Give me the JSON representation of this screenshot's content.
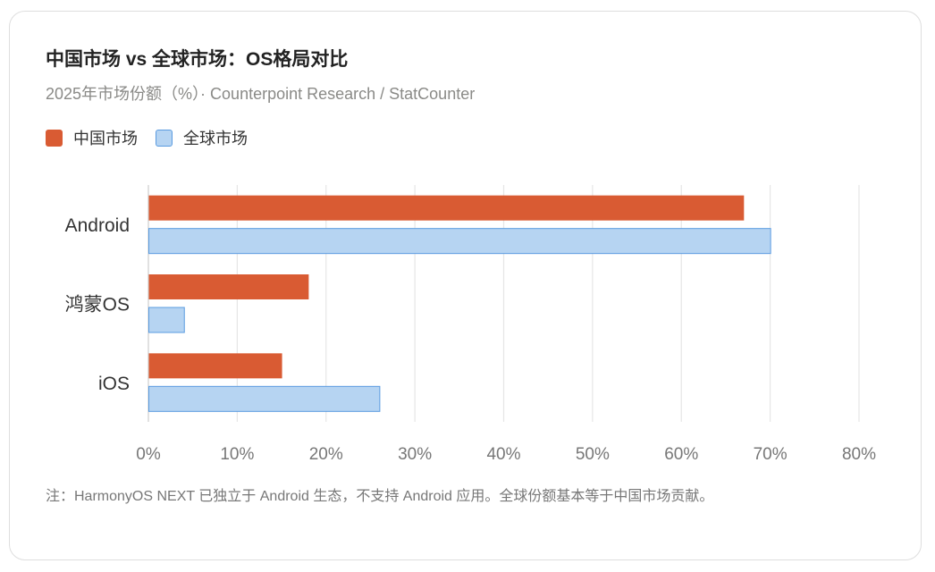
{
  "chart_data": {
    "type": "bar",
    "orientation": "horizontal",
    "title": "中国市场 vs 全球市场：OS格局对比",
    "subtitle": "2025年市场份额（%）· Counterpoint Research / StatCounter",
    "categories": [
      "Android",
      "鸿蒙OS",
      "iOS"
    ],
    "series": [
      {
        "name": "中国市场",
        "values": [
          67,
          18,
          15
        ],
        "color": "#D95B33"
      },
      {
        "name": "全球市场",
        "values": [
          70,
          4,
          26
        ],
        "color": "#B6D4F2",
        "border": "#5A9BE0"
      }
    ],
    "xlim": [
      0,
      80
    ],
    "xticks": [
      "0%",
      "10%",
      "20%",
      "30%",
      "40%",
      "50%",
      "60%",
      "70%",
      "80%"
    ],
    "grid": true,
    "legend": "top-left",
    "note": "注：HarmonyOS NEXT 已独立于 Android 生态，不支持 Android 应用。全球份额基本等于中国市场贡献。"
  }
}
